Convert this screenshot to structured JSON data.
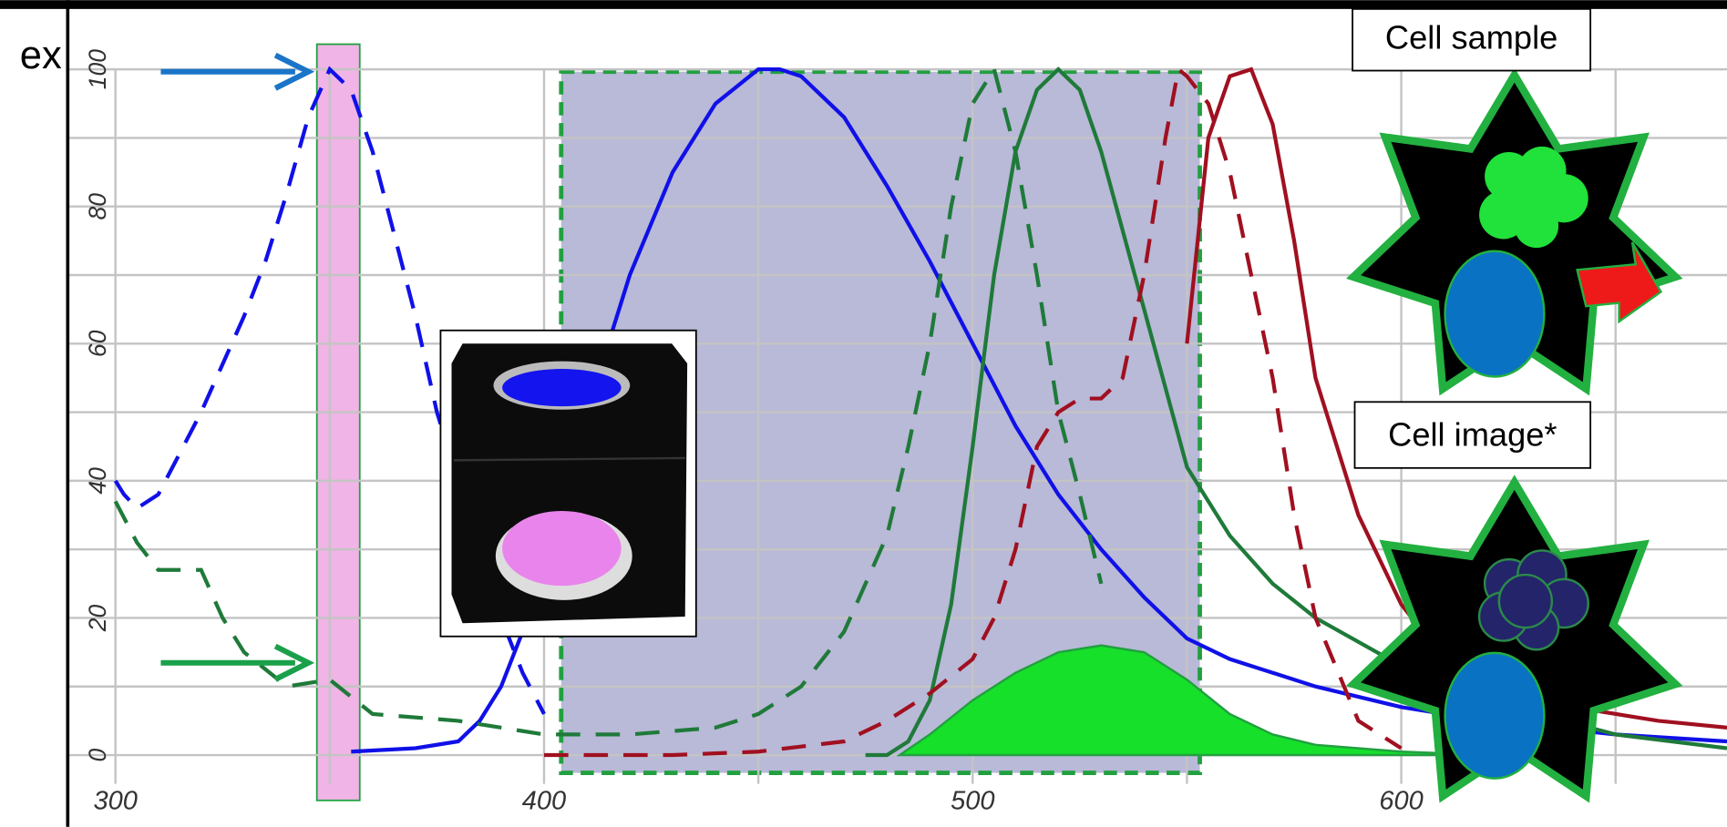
{
  "chart_data": {
    "type": "line",
    "annotations": [
      "ex",
      "Cell sample",
      "Cell image*"
    ],
    "xlim": [
      289,
      676
    ],
    "ylim": [
      -4.2,
      108.8
    ],
    "xticks": [
      300,
      400,
      500,
      600
    ],
    "yticks": [
      0,
      20,
      40,
      60,
      80,
      100
    ],
    "xgrid": [
      300,
      350,
      400,
      450,
      500,
      550,
      600,
      650
    ],
    "ygrid": [
      0,
      10,
      20,
      30,
      40,
      50,
      60,
      70,
      80,
      90,
      100
    ],
    "grid": true,
    "bands": [
      {
        "from": 347,
        "to": 357,
        "color": "#f0b4e6"
      },
      {
        "from": 404,
        "to": 553,
        "color": "#b9b9d8"
      }
    ],
    "series": [
      {
        "color": "#1010e8",
        "dashed": true,
        "x": [
          300,
          302,
          305,
          310,
          315,
          320,
          325,
          330,
          335,
          340,
          345,
          350,
          355,
          360,
          365,
          370,
          375,
          380,
          385,
          390,
          395,
          400
        ],
        "values": [
          40,
          38,
          36,
          38,
          44,
          50,
          57,
          64,
          72,
          82,
          93,
          100,
          97,
          88,
          76,
          64,
          50,
          40,
          30,
          20,
          12,
          6
        ]
      },
      {
        "color": "#1010e8",
        "dashed": false,
        "x": [
          355,
          370,
          380,
          385,
          390,
          395,
          400,
          410,
          420,
          430,
          440,
          450,
          455,
          460,
          470,
          480,
          490,
          500,
          510,
          520,
          530,
          540,
          550,
          560,
          580,
          600,
          620,
          650,
          676
        ],
        "values": [
          0.5,
          1,
          2,
          5,
          10,
          18,
          28,
          50,
          70,
          85,
          95,
          100,
          100,
          99,
          93,
          83,
          72,
          60,
          48,
          38,
          30,
          23,
          17,
          14,
          10,
          7,
          5,
          3,
          2
        ]
      },
      {
        "color": "#1f7a3a",
        "dashed": true,
        "x": [
          300,
          305,
          310,
          320,
          325,
          330,
          340,
          350,
          360,
          380,
          400,
          420,
          440,
          450,
          460,
          470,
          480,
          485,
          490,
          495,
          500,
          505,
          510,
          515,
          520,
          525,
          530
        ],
        "values": [
          37,
          31,
          27,
          27,
          20,
          15,
          10,
          11,
          6,
          5,
          3,
          3,
          4,
          6,
          10,
          18,
          32,
          45,
          60,
          80,
          95,
          100,
          88,
          70,
          50,
          38,
          25
        ]
      },
      {
        "color": "#1f7a3a",
        "dashed": false,
        "x": [
          475,
          480,
          485,
          490,
          495,
          500,
          505,
          510,
          515,
          520,
          525,
          530,
          540,
          550,
          560,
          570,
          580,
          600,
          620,
          650,
          676
        ],
        "values": [
          0,
          0,
          2,
          8,
          22,
          45,
          70,
          88,
          97,
          100,
          97,
          88,
          65,
          42,
          32,
          25,
          20,
          13,
          8,
          3,
          1
        ]
      },
      {
        "color": "#a01020",
        "dashed": true,
        "x": [
          400,
          430,
          450,
          470,
          480,
          490,
          500,
          505,
          510,
          515,
          520,
          525,
          530,
          535,
          540,
          545,
          548,
          550,
          555,
          560,
          565,
          570,
          575,
          580,
          590,
          600
        ],
        "values": [
          0,
          0,
          0.5,
          2,
          5,
          9,
          14,
          20,
          30,
          45,
          50,
          52,
          52,
          55,
          70,
          90,
          100,
          99,
          95,
          85,
          70,
          55,
          35,
          20,
          5,
          1
        ]
      },
      {
        "color": "#a01020",
        "dashed": false,
        "x": [
          550,
          555,
          560,
          565,
          570,
          575,
          580,
          590,
          600,
          610,
          620,
          640,
          660,
          676
        ],
        "values": [
          60,
          90,
          99,
          100,
          92,
          75,
          55,
          35,
          22,
          14,
          10,
          7,
          5,
          4
        ]
      }
    ],
    "area": {
      "color": "#16e02a",
      "x": [
        483,
        490,
        500,
        510,
        520,
        530,
        540,
        550,
        560,
        570,
        580,
        600,
        620
      ],
      "values": [
        0,
        3,
        8,
        12,
        15,
        16,
        15,
        11,
        6,
        3,
        1.5,
        0.5,
        0
      ]
    }
  }
}
